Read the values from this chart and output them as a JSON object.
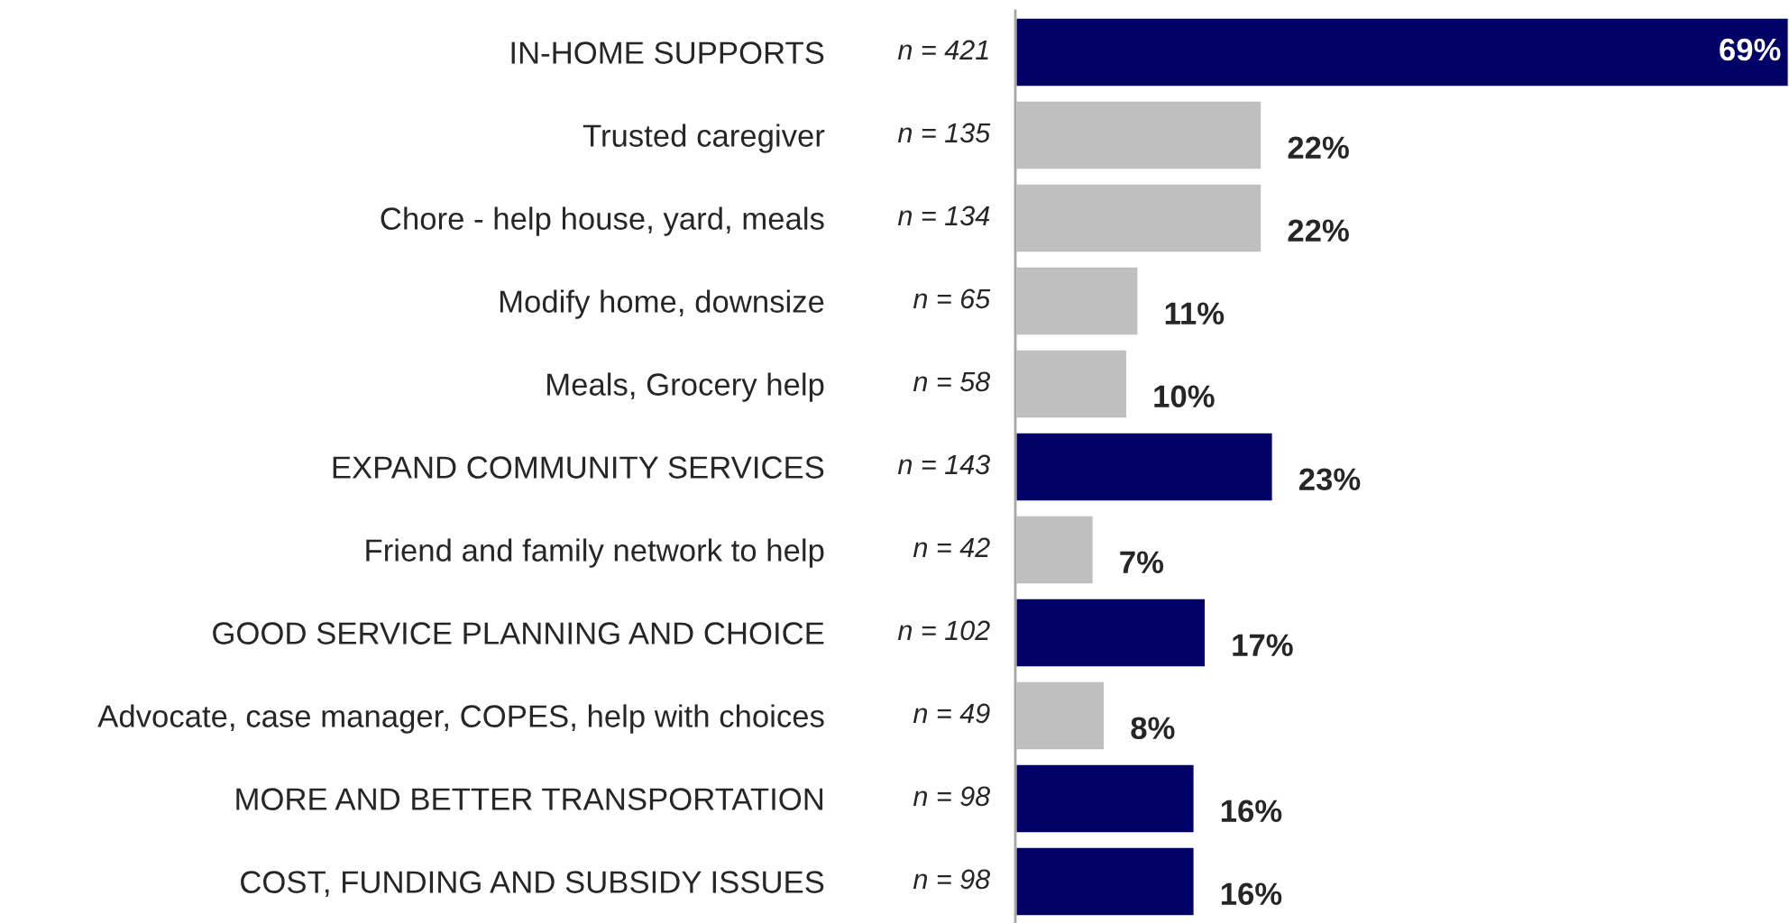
{
  "chart_data": {
    "type": "bar",
    "orientation": "horizontal",
    "categories": [
      "IN-HOME SUPPORTS",
      "Trusted caregiver",
      "Chore - help house, yard, meals",
      "Modify home, downsize",
      "Meals, Grocery help",
      "EXPAND COMMUNITY SERVICES",
      "Friend and family network to help",
      "GOOD SERVICE PLANNING AND CHOICE",
      "Advocate, case manager, COPES, help with choices",
      "MORE AND BETTER TRANSPORTATION",
      "COST, FUNDING AND SUBSIDY ISSUES"
    ],
    "values": [
      69,
      22,
      22,
      11,
      10,
      23,
      7,
      17,
      8,
      16,
      16
    ],
    "colors": [
      "#000066",
      "#bfbfbf",
      "#bfbfbf",
      "#bfbfbf",
      "#bfbfbf",
      "#000066",
      "#bfbfbf",
      "#000066",
      "#bfbfbf",
      "#000066",
      "#000066"
    ],
    "value_labels": [
      "69%",
      "22%",
      "22%",
      "11%",
      "10%",
      "23%",
      "7%",
      "17%",
      "8%",
      "16%",
      "16%"
    ],
    "annotations": [
      "n = 421",
      "n = 135",
      "n = 134",
      "n = 65",
      "n = 58",
      "n = 143",
      "n = 42",
      "n = 102",
      "n = 49",
      "n = 98",
      "n = 98"
    ],
    "grid": false,
    "legend": false
  }
}
